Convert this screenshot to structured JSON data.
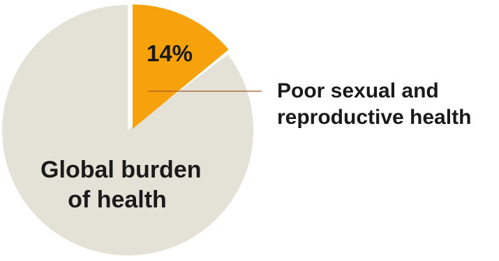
{
  "chart_data": {
    "type": "pie",
    "slices": [
      {
        "label": "Poor sexual and reproductive health",
        "label_lines": [
          "Poor sexual and",
          "reproductive health"
        ],
        "value": 14,
        "value_label": "14%",
        "color": "#f7a10b",
        "exploded": true
      },
      {
        "label": "Global burden of health",
        "label_lines": [
          "Global burden",
          "of health"
        ],
        "value": 86,
        "color": "#e4e1d7",
        "exploded": false
      }
    ],
    "leader_line_color": "#a05a2c"
  }
}
